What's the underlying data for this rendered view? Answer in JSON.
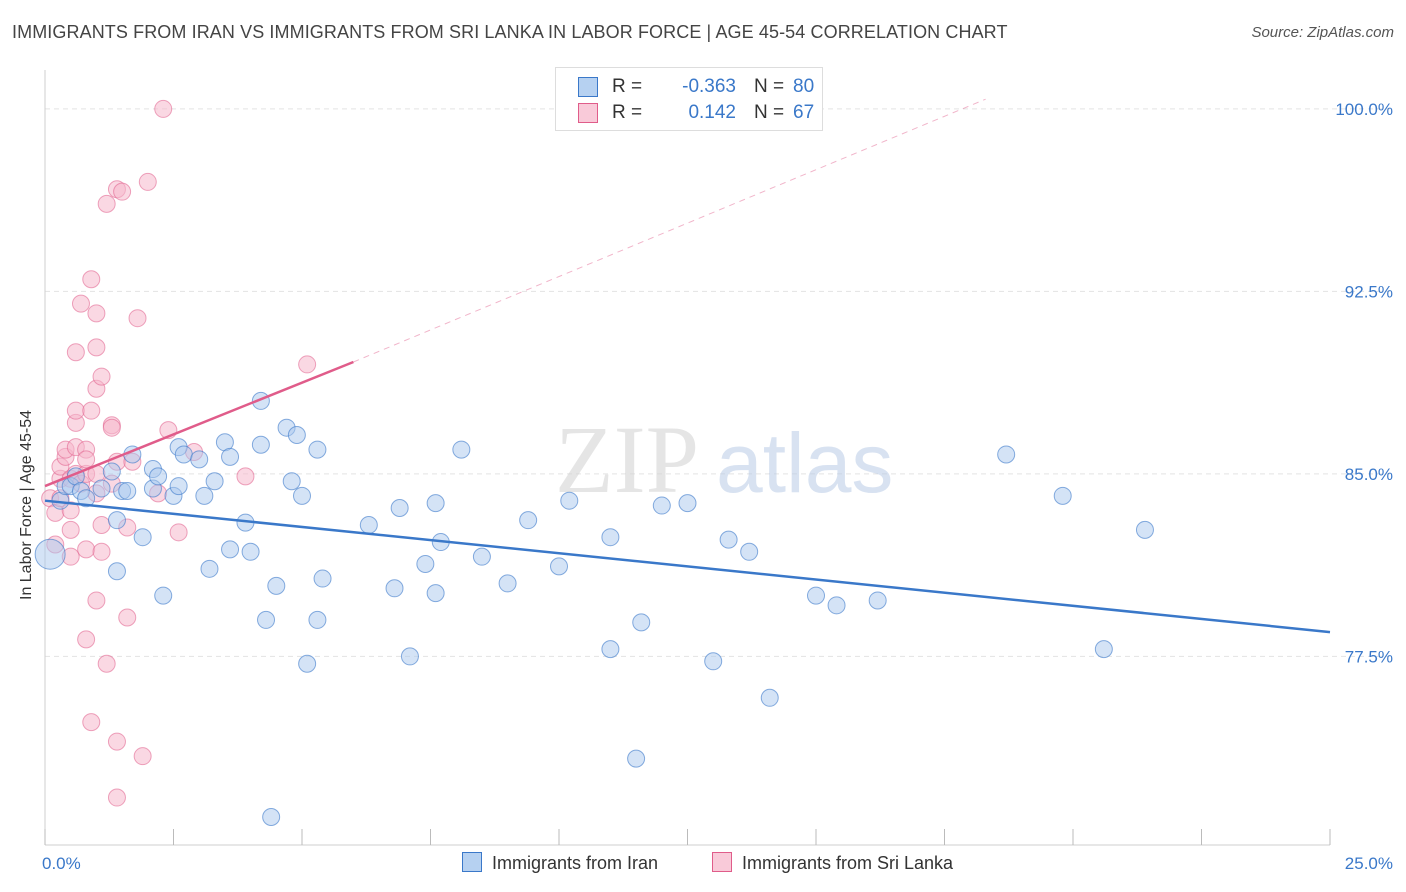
{
  "title": "IMMIGRANTS FROM IRAN VS IMMIGRANTS FROM SRI LANKA IN LABOR FORCE | AGE 45-54 CORRELATION CHART",
  "source": "Source: ZipAtlas.com",
  "watermark": {
    "zip": "ZIP",
    "atlas": "atlas"
  },
  "colors": {
    "iran": "#3a78c9",
    "iran_fill": "#a9c8ee",
    "srilanka": "#e05c8a",
    "srilanka_fill": "#f6b8cc",
    "axis_label": "#3a78c9",
    "grid": "#e3e3e3"
  },
  "legend": {
    "r_label": "R =",
    "n_label": "N =",
    "iran": {
      "r": "-0.363",
      "n": "80"
    },
    "srilanka": {
      "r": "0.142",
      "n": "67"
    }
  },
  "bottom_legend": {
    "iran": "Immigrants from Iran",
    "srilanka": "Immigrants from Sri Lanka"
  },
  "chart_data": {
    "type": "scatter",
    "title": "IMMIGRANTS FROM IRAN VS IMMIGRANTS FROM SRI LANKA IN LABOR FORCE | AGE 45-54 CORRELATION CHART",
    "xlabel": "",
    "ylabel": "In Labor Force | Age 45-54",
    "xlim": [
      0,
      25
    ],
    "ylim": [
      69.75,
      101.6
    ],
    "x_tick_labels": [
      {
        "value": 0,
        "label": "0.0%"
      },
      {
        "value": 25,
        "label": "25.0%"
      }
    ],
    "y_tick_labels": [
      {
        "value": 77.5,
        "label": "77.5%"
      },
      {
        "value": 85.0,
        "label": "85.0%"
      },
      {
        "value": 92.5,
        "label": "92.5%"
      },
      {
        "value": 100.0,
        "label": "100.0%"
      }
    ],
    "series": [
      {
        "name": "Immigrants from Iran",
        "r": -0.363,
        "n": 80,
        "trend": {
          "x0": 0.0,
          "y0": 83.9,
          "x1": 25.0,
          "y1": 78.5
        },
        "points": [
          [
            0.1,
            81.7
          ],
          [
            0.3,
            83.9
          ],
          [
            0.4,
            84.5
          ],
          [
            0.5,
            84.5
          ],
          [
            0.6,
            84.9
          ],
          [
            0.7,
            84.3
          ],
          [
            0.8,
            84.0
          ],
          [
            1.1,
            84.4
          ],
          [
            1.3,
            85.1
          ],
          [
            1.4,
            83.1
          ],
          [
            1.4,
            81.0
          ],
          [
            1.5,
            84.3
          ],
          [
            1.6,
            84.3
          ],
          [
            1.7,
            85.8
          ],
          [
            1.9,
            82.4
          ],
          [
            2.1,
            84.4
          ],
          [
            2.1,
            85.2
          ],
          [
            2.2,
            84.9
          ],
          [
            2.3,
            80.0
          ],
          [
            2.5,
            84.1
          ],
          [
            2.6,
            84.5
          ],
          [
            2.6,
            86.1
          ],
          [
            2.7,
            85.8
          ],
          [
            3.0,
            85.6
          ],
          [
            3.1,
            84.1
          ],
          [
            3.2,
            81.1
          ],
          [
            3.3,
            84.7
          ],
          [
            3.5,
            86.3
          ],
          [
            3.6,
            81.9
          ],
          [
            3.6,
            85.7
          ],
          [
            3.9,
            83.0
          ],
          [
            4.0,
            81.8
          ],
          [
            4.2,
            88.0
          ],
          [
            4.2,
            86.2
          ],
          [
            4.3,
            79.0
          ],
          [
            4.4,
            70.9
          ],
          [
            4.5,
            80.4
          ],
          [
            4.7,
            86.9
          ],
          [
            4.8,
            84.7
          ],
          [
            4.9,
            86.6
          ],
          [
            5.0,
            84.1
          ],
          [
            5.1,
            77.2
          ],
          [
            5.3,
            86.0
          ],
          [
            5.3,
            79.0
          ],
          [
            5.4,
            80.7
          ],
          [
            6.3,
            82.9
          ],
          [
            6.8,
            80.3
          ],
          [
            6.9,
            83.6
          ],
          [
            7.1,
            77.5
          ],
          [
            7.4,
            81.3
          ],
          [
            7.6,
            80.1
          ],
          [
            7.6,
            83.8
          ],
          [
            7.7,
            82.2
          ],
          [
            8.1,
            86.0
          ],
          [
            8.5,
            81.6
          ],
          [
            9.0,
            80.5
          ],
          [
            9.4,
            83.1
          ],
          [
            10.0,
            81.2
          ],
          [
            10.2,
            83.9
          ],
          [
            11.0,
            82.4
          ],
          [
            11.0,
            77.8
          ],
          [
            11.5,
            73.3
          ],
          [
            11.6,
            78.9
          ],
          [
            12.0,
            83.7
          ],
          [
            12.5,
            83.8
          ],
          [
            13.0,
            77.3
          ],
          [
            13.3,
            82.3
          ],
          [
            13.7,
            81.8
          ],
          [
            14.1,
            75.8
          ],
          [
            15.0,
            80.0
          ],
          [
            15.4,
            79.6
          ],
          [
            16.2,
            79.8
          ],
          [
            18.7,
            85.8
          ],
          [
            19.8,
            84.1
          ],
          [
            20.6,
            77.8
          ],
          [
            21.4,
            82.7
          ]
        ]
      },
      {
        "name": "Immigrants from Sri Lanka",
        "r": 0.142,
        "n": 67,
        "trend": {
          "x0": 0.0,
          "y0": 84.5,
          "x1": 6.0,
          "y1": 89.6
        },
        "trend_ext": {
          "x0": 6.0,
          "y0": 89.6,
          "x1": 18.3,
          "y1": 100.4
        },
        "points": [
          [
            0.1,
            84.0
          ],
          [
            0.2,
            82.1
          ],
          [
            0.2,
            83.4
          ],
          [
            0.3,
            84.0
          ],
          [
            0.3,
            84.8
          ],
          [
            0.3,
            85.3
          ],
          [
            0.4,
            85.7
          ],
          [
            0.4,
            86.0
          ],
          [
            0.5,
            84.8
          ],
          [
            0.5,
            83.5
          ],
          [
            0.5,
            82.7
          ],
          [
            0.5,
            81.6
          ],
          [
            0.6,
            86.1
          ],
          [
            0.6,
            85.0
          ],
          [
            0.6,
            87.1
          ],
          [
            0.6,
            87.6
          ],
          [
            0.6,
            90.0
          ],
          [
            0.7,
            92.0
          ],
          [
            0.7,
            84.6
          ],
          [
            0.8,
            86.0
          ],
          [
            0.8,
            85.0
          ],
          [
            0.8,
            81.9
          ],
          [
            0.8,
            85.6
          ],
          [
            0.8,
            78.2
          ],
          [
            0.9,
            93.0
          ],
          [
            0.9,
            87.6
          ],
          [
            0.9,
            74.8
          ],
          [
            1.0,
            91.6
          ],
          [
            1.0,
            90.2
          ],
          [
            1.0,
            88.5
          ],
          [
            1.0,
            85.0
          ],
          [
            1.0,
            84.2
          ],
          [
            1.0,
            79.8
          ],
          [
            1.1,
            89.0
          ],
          [
            1.1,
            82.9
          ],
          [
            1.1,
            81.8
          ],
          [
            1.2,
            96.1
          ],
          [
            1.2,
            77.2
          ],
          [
            1.3,
            87.0
          ],
          [
            1.3,
            86.9
          ],
          [
            1.3,
            84.6
          ],
          [
            1.4,
            96.7
          ],
          [
            1.4,
            85.5
          ],
          [
            1.4,
            74.0
          ],
          [
            1.4,
            71.7
          ],
          [
            1.5,
            96.6
          ],
          [
            1.6,
            82.8
          ],
          [
            1.6,
            79.1
          ],
          [
            1.7,
            85.5
          ],
          [
            1.8,
            91.4
          ],
          [
            1.9,
            73.4
          ],
          [
            2.0,
            97.0
          ],
          [
            2.2,
            84.2
          ],
          [
            2.3,
            100.0
          ],
          [
            2.4,
            86.8
          ],
          [
            2.6,
            82.6
          ],
          [
            2.9,
            85.9
          ],
          [
            3.9,
            84.9
          ],
          [
            5.1,
            89.5
          ]
        ]
      }
    ]
  }
}
